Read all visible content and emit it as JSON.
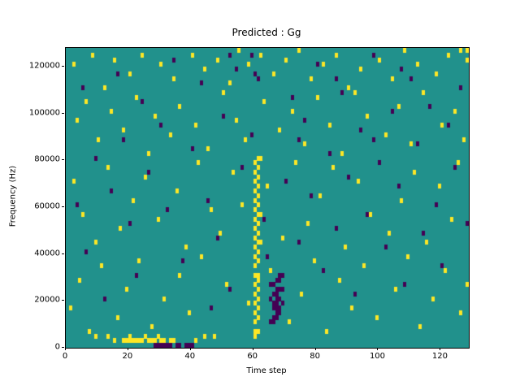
{
  "chart_data": {
    "type": "heatmap",
    "title": "Predicted : Gg",
    "xlabel": "Time step",
    "ylabel": "Frequency (Hz)",
    "xlim": [
      0,
      129
    ],
    "ylim": [
      0,
      128000
    ],
    "x_ticks": [
      0,
      20,
      40,
      60,
      80,
      100,
      120
    ],
    "y_ticks": [
      0,
      20000,
      40000,
      60000,
      80000,
      100000,
      120000
    ],
    "x_tick_labels": [
      "0",
      "20",
      "40",
      "60",
      "80",
      "100",
      "120"
    ],
    "y_tick_labels": [
      "0",
      "20000",
      "40000",
      "60000",
      "80000",
      "100000",
      "120000"
    ],
    "grid": {
      "cols": 129,
      "rows": 64,
      "freq_bin_hz": 2000
    },
    "legend": "none",
    "colors": {
      "background": "#21918c",
      "high": "#fde725",
      "low": "#440154"
    },
    "yellow_cells": [
      [
        60,
        2
      ],
      [
        60,
        3
      ],
      [
        61,
        3
      ],
      [
        60,
        5
      ],
      [
        61,
        6
      ],
      [
        60,
        7
      ],
      [
        61,
        8
      ],
      [
        60,
        9
      ],
      [
        61,
        10
      ],
      [
        60,
        11
      ],
      [
        61,
        12
      ],
      [
        60,
        13
      ],
      [
        61,
        14
      ],
      [
        60,
        15
      ],
      [
        61,
        15
      ],
      [
        60,
        17
      ],
      [
        61,
        18
      ],
      [
        60,
        19
      ],
      [
        61,
        20
      ],
      [
        60,
        21
      ],
      [
        61,
        22
      ],
      [
        62,
        22
      ],
      [
        60,
        23
      ],
      [
        61,
        24
      ],
      [
        60,
        25
      ],
      [
        61,
        26
      ],
      [
        60,
        27
      ],
      [
        61,
        28
      ],
      [
        62,
        28
      ],
      [
        60,
        29
      ],
      [
        61,
        30
      ],
      [
        60,
        31
      ],
      [
        61,
        32
      ],
      [
        60,
        33
      ],
      [
        61,
        34
      ],
      [
        60,
        35
      ],
      [
        61,
        36
      ],
      [
        60,
        37
      ],
      [
        61,
        38
      ],
      [
        60,
        39
      ],
      [
        61,
        40
      ],
      [
        62,
        40
      ],
      [
        18,
        1
      ],
      [
        19,
        1
      ],
      [
        20,
        1
      ],
      [
        21,
        1
      ],
      [
        22,
        1
      ],
      [
        23,
        1
      ],
      [
        24,
        1
      ],
      [
        26,
        1
      ],
      [
        27,
        1
      ],
      [
        28,
        1
      ],
      [
        30,
        1
      ],
      [
        31,
        1
      ],
      [
        33,
        1
      ],
      [
        34,
        1
      ],
      [
        20,
        2
      ],
      [
        25,
        2
      ],
      [
        29,
        2
      ],
      [
        13,
        2
      ],
      [
        15,
        1
      ],
      [
        9,
        2
      ],
      [
        41,
        1
      ],
      [
        44,
        2
      ],
      [
        2,
        60
      ],
      [
        8,
        62
      ],
      [
        12,
        55
      ],
      [
        15,
        61
      ],
      [
        20,
        58
      ],
      [
        24,
        62
      ],
      [
        30,
        60
      ],
      [
        34,
        57
      ],
      [
        40,
        62
      ],
      [
        44,
        59
      ],
      [
        48,
        61
      ],
      [
        52,
        56
      ],
      [
        55,
        63
      ],
      [
        58,
        60
      ],
      [
        62,
        62
      ],
      [
        66,
        58
      ],
      [
        70,
        61
      ],
      [
        74,
        63
      ],
      [
        78,
        57
      ],
      [
        82,
        60
      ],
      [
        86,
        62
      ],
      [
        90,
        55
      ],
      [
        94,
        59
      ],
      [
        100,
        61
      ],
      [
        104,
        57
      ],
      [
        108,
        63
      ],
      [
        112,
        60
      ],
      [
        118,
        58
      ],
      [
        122,
        62
      ],
      [
        126,
        63
      ],
      [
        128,
        61
      ],
      [
        128,
        63
      ],
      [
        3,
        48
      ],
      [
        6,
        52
      ],
      [
        10,
        44
      ],
      [
        14,
        50
      ],
      [
        18,
        46
      ],
      [
        22,
        53
      ],
      [
        26,
        41
      ],
      [
        28,
        49
      ],
      [
        33,
        45
      ],
      [
        36,
        51
      ],
      [
        41,
        47
      ],
      [
        45,
        42
      ],
      [
        50,
        54
      ],
      [
        54,
        48
      ],
      [
        57,
        44
      ],
      [
        63,
        52
      ],
      [
        68,
        46
      ],
      [
        72,
        50
      ],
      [
        76,
        43
      ],
      [
        80,
        53
      ],
      [
        84,
        47
      ],
      [
        88,
        41
      ],
      [
        92,
        54
      ],
      [
        96,
        49
      ],
      [
        102,
        45
      ],
      [
        106,
        51
      ],
      [
        110,
        43
      ],
      [
        114,
        54
      ],
      [
        120,
        47
      ],
      [
        124,
        50
      ],
      [
        127,
        44
      ],
      [
        2,
        35
      ],
      [
        5,
        28
      ],
      [
        9,
        22
      ],
      [
        13,
        38
      ],
      [
        17,
        25
      ],
      [
        21,
        31
      ],
      [
        25,
        36
      ],
      [
        29,
        27
      ],
      [
        35,
        33
      ],
      [
        38,
        21
      ],
      [
        42,
        39
      ],
      [
        46,
        29
      ],
      [
        49,
        24
      ],
      [
        53,
        37
      ],
      [
        56,
        30
      ],
      [
        64,
        34
      ],
      [
        69,
        23
      ],
      [
        73,
        39
      ],
      [
        77,
        26
      ],
      [
        81,
        32
      ],
      [
        85,
        38
      ],
      [
        89,
        21
      ],
      [
        93,
        35
      ],
      [
        97,
        28
      ],
      [
        103,
        24
      ],
      [
        107,
        31
      ],
      [
        111,
        37
      ],
      [
        115,
        22
      ],
      [
        119,
        34
      ],
      [
        123,
        27
      ],
      [
        125,
        39
      ],
      [
        1,
        8
      ],
      [
        4,
        14
      ],
      [
        7,
        3
      ],
      [
        11,
        17
      ],
      [
        16,
        6
      ],
      [
        19,
        12
      ],
      [
        23,
        18
      ],
      [
        27,
        4
      ],
      [
        31,
        10
      ],
      [
        36,
        15
      ],
      [
        39,
        7
      ],
      [
        43,
        19
      ],
      [
        47,
        2
      ],
      [
        51,
        13
      ],
      [
        58,
        9
      ],
      [
        65,
        16
      ],
      [
        71,
        5
      ],
      [
        75,
        11
      ],
      [
        79,
        18
      ],
      [
        83,
        3
      ],
      [
        87,
        14
      ],
      [
        91,
        8
      ],
      [
        95,
        17
      ],
      [
        99,
        6
      ],
      [
        105,
        12
      ],
      [
        109,
        19
      ],
      [
        113,
        4
      ],
      [
        117,
        10
      ],
      [
        121,
        16
      ],
      [
        126,
        7
      ],
      [
        128,
        13
      ]
    ],
    "purple_cells": [
      [
        65,
        5
      ],
      [
        66,
        5
      ],
      [
        66,
        6
      ],
      [
        67,
        6
      ],
      [
        67,
        7
      ],
      [
        68,
        7
      ],
      [
        66,
        8
      ],
      [
        67,
        8
      ],
      [
        68,
        8
      ],
      [
        66,
        9
      ],
      [
        67,
        9
      ],
      [
        68,
        10
      ],
      [
        67,
        10
      ],
      [
        66,
        11
      ],
      [
        67,
        11
      ],
      [
        68,
        12
      ],
      [
        67,
        12
      ],
      [
        66,
        13
      ],
      [
        67,
        14
      ],
      [
        68,
        14
      ],
      [
        69,
        9
      ],
      [
        69,
        12
      ],
      [
        65,
        10
      ],
      [
        65,
        13
      ],
      [
        68,
        15
      ],
      [
        69,
        15
      ],
      [
        28,
        0
      ],
      [
        29,
        0
      ],
      [
        30,
        0
      ],
      [
        31,
        0
      ],
      [
        32,
        0
      ],
      [
        33,
        0
      ],
      [
        35,
        0
      ],
      [
        36,
        0
      ],
      [
        38,
        0
      ],
      [
        39,
        0
      ],
      [
        40,
        0
      ],
      [
        3,
        30
      ],
      [
        5,
        55
      ],
      [
        6,
        20
      ],
      [
        9,
        40
      ],
      [
        12,
        10
      ],
      [
        14,
        33
      ],
      [
        16,
        58
      ],
      [
        18,
        44
      ],
      [
        20,
        26
      ],
      [
        22,
        15
      ],
      [
        24,
        52
      ],
      [
        26,
        37
      ],
      [
        30,
        47
      ],
      [
        32,
        29
      ],
      [
        34,
        61
      ],
      [
        37,
        18
      ],
      [
        40,
        42
      ],
      [
        43,
        56
      ],
      [
        45,
        31
      ],
      [
        48,
        23
      ],
      [
        50,
        49
      ],
      [
        52,
        12
      ],
      [
        54,
        59
      ],
      [
        56,
        38
      ],
      [
        59,
        45
      ],
      [
        61,
        57
      ],
      [
        63,
        27
      ],
      [
        64,
        19
      ],
      [
        70,
        35
      ],
      [
        72,
        53
      ],
      [
        74,
        22
      ],
      [
        76,
        48
      ],
      [
        78,
        32
      ],
      [
        80,
        60
      ],
      [
        82,
        16
      ],
      [
        84,
        41
      ],
      [
        86,
        25
      ],
      [
        88,
        54
      ],
      [
        90,
        36
      ],
      [
        92,
        11
      ],
      [
        94,
        46
      ],
      [
        96,
        28
      ],
      [
        98,
        62
      ],
      [
        100,
        39
      ],
      [
        102,
        21
      ],
      [
        104,
        50
      ],
      [
        106,
        34
      ],
      [
        108,
        13
      ],
      [
        110,
        57
      ],
      [
        112,
        43
      ],
      [
        114,
        24
      ],
      [
        116,
        51
      ],
      [
        118,
        30
      ],
      [
        120,
        17
      ],
      [
        122,
        47
      ],
      [
        124,
        38
      ],
      [
        126,
        55
      ],
      [
        128,
        26
      ],
      [
        59,
        62
      ],
      [
        60,
        58
      ],
      [
        74,
        44
      ],
      [
        46,
        8
      ],
      [
        52,
        62
      ],
      [
        86,
        57
      ],
      [
        98,
        44
      ],
      [
        107,
        59
      ]
    ]
  }
}
